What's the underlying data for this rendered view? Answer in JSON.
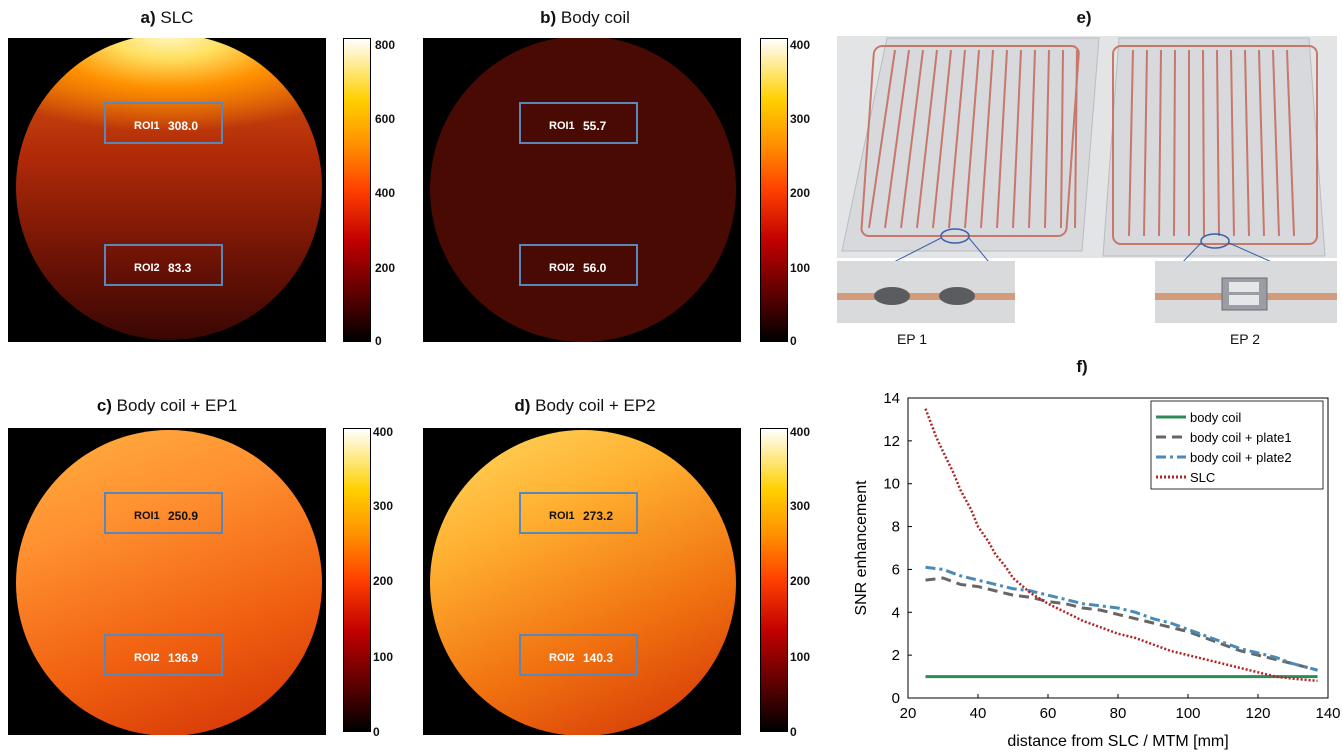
{
  "panels": {
    "a": {
      "letter": "a)",
      "name": "SLC",
      "roi1_label": "ROI1",
      "roi1_value": "308.0",
      "roi2_label": "ROI2",
      "roi2_value": "83.3",
      "cbar_ticks": [
        "800",
        "600",
        "400",
        "200",
        "0"
      ]
    },
    "b": {
      "letter": "b)",
      "name": "Body coil",
      "roi1_label": "ROI1",
      "roi1_value": "55.7",
      "roi2_label": "ROI2",
      "roi2_value": "56.0",
      "cbar_ticks": [
        "400",
        "300",
        "200",
        "100",
        "0"
      ]
    },
    "c": {
      "letter": "c)",
      "name": "Body coil + EP1",
      "roi1_label": "ROI1",
      "roi1_value": "250.9",
      "roi2_label": "ROI2",
      "roi2_value": "136.9",
      "cbar_ticks": [
        "400",
        "300",
        "200",
        "100",
        "0"
      ]
    },
    "d": {
      "letter": "d)",
      "name": "Body coil + EP2",
      "roi1_label": "ROI1",
      "roi1_value": "273.2",
      "roi2_label": "ROI2",
      "roi2_value": "140.3",
      "cbar_ticks": [
        "400",
        "300",
        "200",
        "100",
        "0"
      ]
    },
    "e": {
      "letter": "e)",
      "caption1": "EP 1",
      "caption2": "EP 2"
    },
    "f": {
      "letter": "f)"
    }
  },
  "chart_data": {
    "type": "line",
    "xlabel": "distance from SLC / MTM [mm]",
    "ylabel": "SNR enhancement",
    "xlim": [
      20,
      140
    ],
    "ylim": [
      0,
      14
    ],
    "xticks": [
      20,
      40,
      60,
      80,
      100,
      120,
      140
    ],
    "yticks": [
      0,
      2,
      4,
      6,
      8,
      10,
      12,
      14
    ],
    "legend_position": "top-right",
    "series": [
      {
        "name": "body coil",
        "color": "#2e8b57",
        "style": "solid",
        "x": [
          25,
          137
        ],
        "y": [
          1.0,
          1.0
        ]
      },
      {
        "name": "body coil + plate1",
        "color": "#666666",
        "style": "dashed",
        "x": [
          25,
          30,
          35,
          40,
          45,
          50,
          55,
          60,
          65,
          70,
          75,
          80,
          85,
          90,
          95,
          100,
          105,
          110,
          115,
          120,
          125,
          130,
          137
        ],
        "y": [
          5.5,
          5.6,
          5.3,
          5.2,
          5.0,
          4.8,
          4.7,
          4.5,
          4.4,
          4.2,
          4.1,
          3.9,
          3.7,
          3.5,
          3.3,
          3.1,
          2.8,
          2.5,
          2.2,
          2.0,
          1.8,
          1.6,
          1.3
        ]
      },
      {
        "name": "body coil + plate2",
        "color": "#4a8ab8",
        "style": "dashdot",
        "x": [
          25,
          30,
          35,
          40,
          45,
          50,
          55,
          60,
          65,
          70,
          75,
          80,
          85,
          90,
          95,
          100,
          105,
          110,
          115,
          120,
          125,
          130,
          137
        ],
        "y": [
          6.1,
          6.0,
          5.7,
          5.5,
          5.3,
          5.1,
          5.0,
          4.8,
          4.6,
          4.4,
          4.3,
          4.2,
          4.0,
          3.7,
          3.5,
          3.2,
          2.9,
          2.6,
          2.3,
          2.1,
          1.9,
          1.6,
          1.3
        ]
      },
      {
        "name": "SLC",
        "color": "#b22222",
        "style": "dotted",
        "x": [
          25,
          28,
          30,
          33,
          35,
          38,
          40,
          43,
          45,
          48,
          50,
          55,
          60,
          65,
          70,
          75,
          80,
          85,
          90,
          95,
          100,
          105,
          110,
          115,
          120,
          125,
          130,
          137
        ],
        "y": [
          13.5,
          12.2,
          11.5,
          10.5,
          9.7,
          8.8,
          8.0,
          7.3,
          6.7,
          6.1,
          5.6,
          4.9,
          4.4,
          4.0,
          3.6,
          3.3,
          3.0,
          2.8,
          2.5,
          2.2,
          2.0,
          1.8,
          1.6,
          1.4,
          1.2,
          1.0,
          0.9,
          0.8
        ]
      }
    ]
  }
}
